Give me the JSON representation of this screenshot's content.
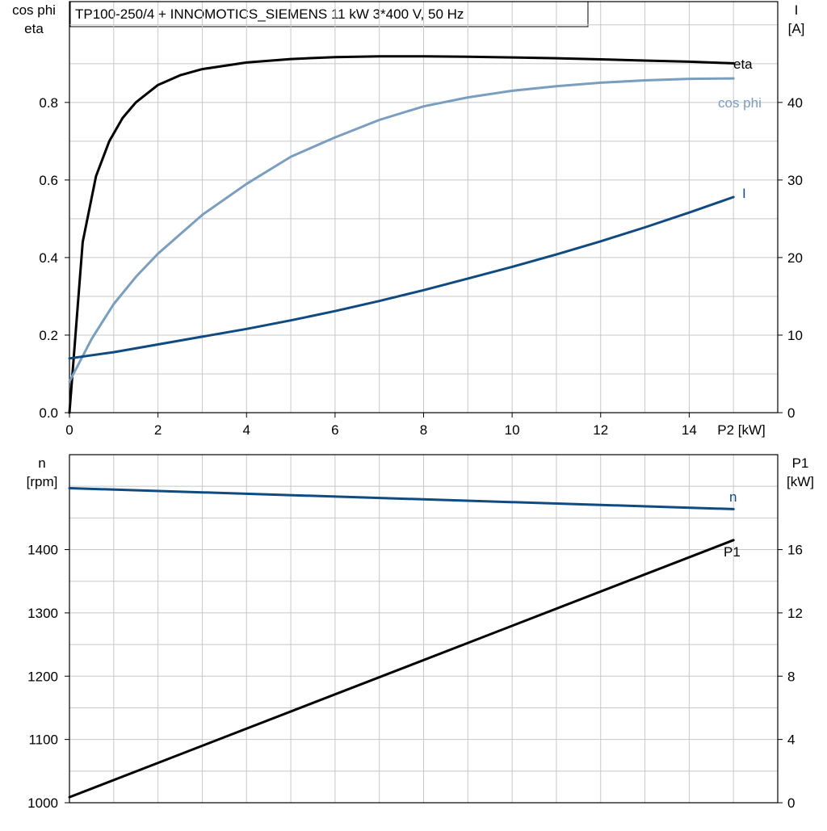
{
  "title": "TP100-250/4 + INNOMOTICS_SIEMENS   11 kW   3*400 V, 50 Hz",
  "colors": {
    "eta": "#000000",
    "cos_phi": "#7a9ebf",
    "I": "#0f4a80",
    "n": "#0f4a80",
    "P1": "#000000",
    "grid": "#c8c8c8"
  },
  "chart_data": [
    {
      "type": "line",
      "xlabel": "P2 [kW]",
      "x_ticks": [
        "0",
        "2",
        "4",
        "6",
        "8",
        "10",
        "12",
        "14"
      ],
      "xlim": [
        0,
        16
      ],
      "y_left": {
        "label_line1": "cos phi",
        "label_line2": "eta",
        "ylim": [
          0,
          1.06
        ],
        "ticks": [
          "0.0",
          "0.2",
          "0.4",
          "0.6",
          "0.8"
        ],
        "tick_values": [
          0,
          0.2,
          0.4,
          0.6,
          0.8
        ]
      },
      "y_right": {
        "label_line1": "I",
        "label_line2": "[A]",
        "ylim": [
          0,
          53
        ],
        "ticks": [
          "0",
          "10",
          "20",
          "30",
          "40"
        ],
        "tick_values": [
          0,
          10,
          20,
          30,
          40
        ]
      },
      "grid": true,
      "series": [
        {
          "name": "eta",
          "axis": "left",
          "color_key": "eta",
          "x": [
            0,
            0.3,
            0.6,
            0.9,
            1.2,
            1.5,
            2,
            2.5,
            3,
            4,
            5,
            6,
            7,
            8,
            9,
            10,
            11,
            12,
            13,
            14,
            15
          ],
          "y": [
            0,
            0.44,
            0.61,
            0.7,
            0.76,
            0.8,
            0.845,
            0.87,
            0.886,
            0.903,
            0.912,
            0.917,
            0.919,
            0.919,
            0.918,
            0.916,
            0.914,
            0.911,
            0.908,
            0.905,
            0.901
          ]
        },
        {
          "name": "cos phi",
          "axis": "left",
          "color_key": "cos_phi",
          "x": [
            0,
            0.5,
            1,
            1.5,
            2,
            3,
            4,
            5,
            6,
            7,
            8,
            9,
            10,
            11,
            12,
            13,
            14,
            15
          ],
          "y": [
            0.08,
            0.19,
            0.28,
            0.35,
            0.41,
            0.51,
            0.59,
            0.66,
            0.71,
            0.755,
            0.79,
            0.813,
            0.83,
            0.842,
            0.851,
            0.857,
            0.861,
            0.862
          ]
        },
        {
          "name": "I",
          "axis": "right",
          "color_key": "I",
          "x": [
            0,
            1,
            2,
            3,
            4,
            5,
            6,
            7,
            8,
            9,
            10,
            11,
            12,
            13,
            14,
            15
          ],
          "y": [
            7,
            7.8,
            8.8,
            9.8,
            10.8,
            11.9,
            13.1,
            14.4,
            15.8,
            17.3,
            18.8,
            20.4,
            22.1,
            23.9,
            25.8,
            27.8
          ]
        }
      ]
    },
    {
      "type": "line",
      "x_ticks": [],
      "xlim": [
        0,
        16
      ],
      "y_left": {
        "label_line1": "n",
        "label_line2": "[rpm]",
        "ylim": [
          1000,
          1550
        ],
        "ticks": [
          "1000",
          "1100",
          "1200",
          "1300",
          "1400"
        ],
        "tick_values": [
          1000,
          1100,
          1200,
          1300,
          1400
        ]
      },
      "y_right": {
        "label_line1": "P1",
        "label_line2": "[kW]",
        "ylim": [
          0,
          22
        ],
        "ticks": [
          "0",
          "4",
          "8",
          "12",
          "16"
        ],
        "tick_values": [
          0,
          4,
          8,
          12,
          16
        ]
      },
      "grid": true,
      "series": [
        {
          "name": "n",
          "axis": "left",
          "color_key": "n",
          "x": [
            0,
            15
          ],
          "y": [
            1497,
            1464
          ]
        },
        {
          "name": "P1",
          "axis": "right",
          "color_key": "P1",
          "x": [
            0,
            15
          ],
          "y": [
            0.35,
            16.6
          ]
        }
      ]
    }
  ]
}
